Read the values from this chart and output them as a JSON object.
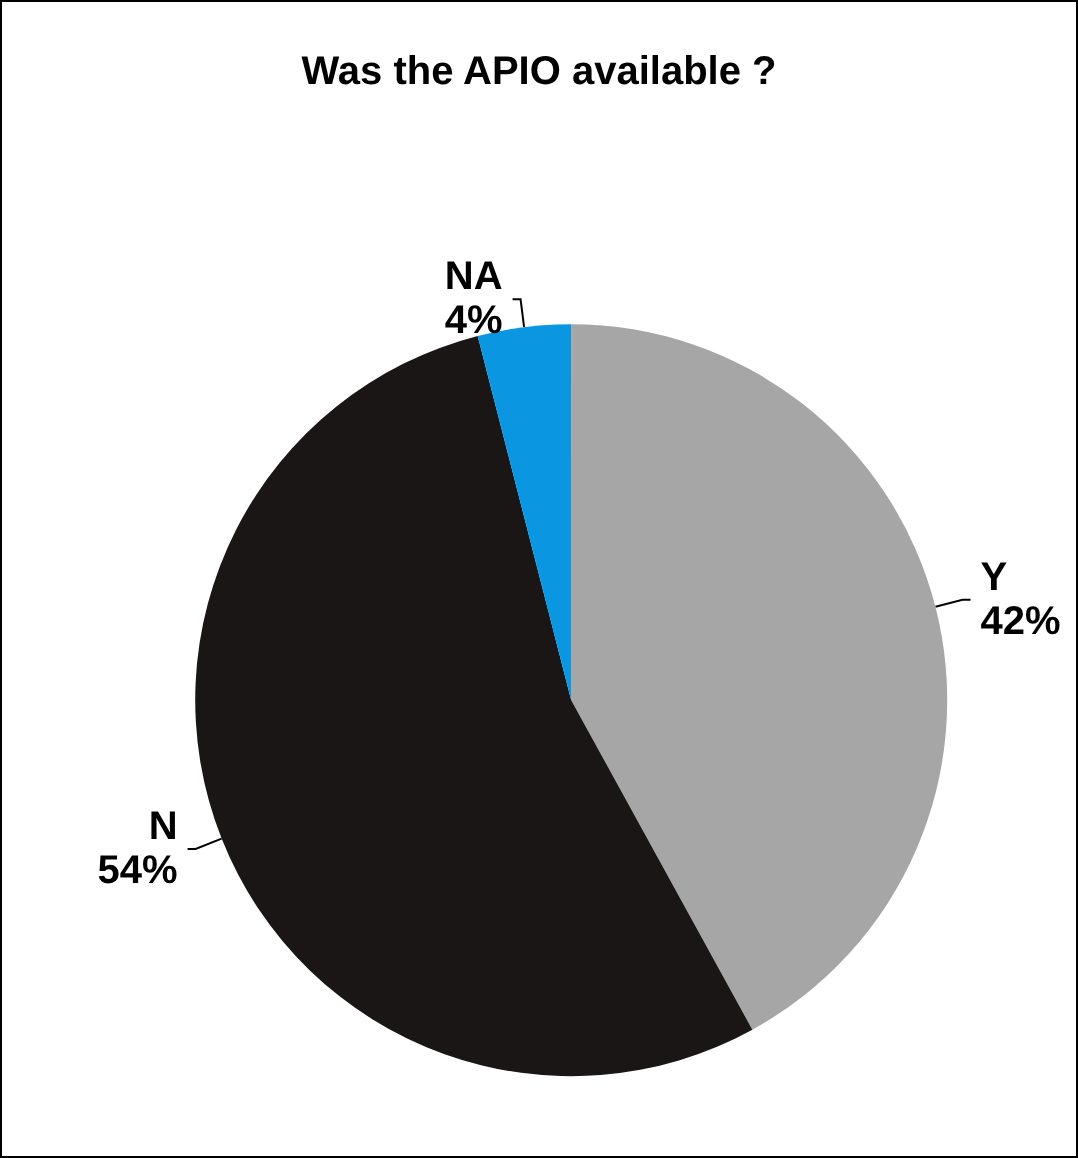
{
  "chart_data": {
    "type": "pie",
    "title": "Was the APIO available ?",
    "categories": [
      "Y",
      "N",
      "NA"
    ],
    "values": [
      42,
      54,
      4
    ],
    "colors": [
      "#a6a6a6",
      "#1a1616",
      "#0a96e0"
    ],
    "value_labels": [
      "42%",
      "54%",
      "4%"
    ],
    "legend": false
  }
}
